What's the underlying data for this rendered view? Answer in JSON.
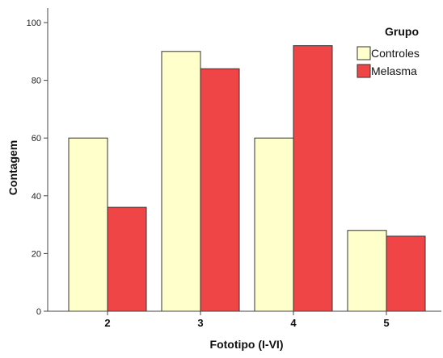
{
  "chart_data": {
    "type": "bar",
    "categories": [
      "2",
      "3",
      "4",
      "5"
    ],
    "series": [
      {
        "name": "Controles",
        "values": [
          60,
          90,
          60,
          28
        ],
        "color": "#ffffcc"
      },
      {
        "name": "Melasma",
        "values": [
          36,
          84,
          92,
          26
        ],
        "color": "#ef4547"
      }
    ],
    "xlabel": "Fototipo (I-VI)",
    "ylabel": "Contagem",
    "ylim": [
      0,
      100
    ],
    "yticks": [
      0,
      20,
      40,
      60,
      80,
      100
    ],
    "grid": false,
    "legend": {
      "title": "Grupo",
      "position": "top-right"
    }
  }
}
